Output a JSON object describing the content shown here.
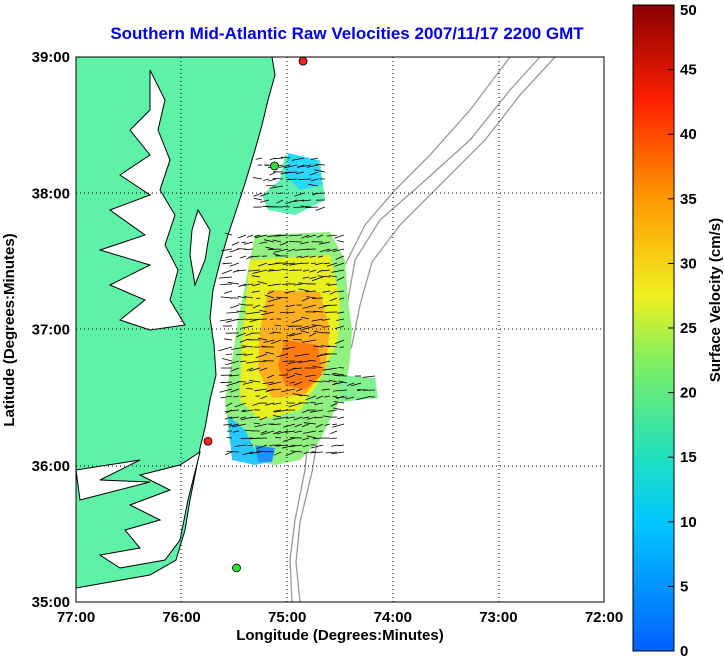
{
  "title": "Southern Mid-Atlantic Raw Velocities 2007/11/17 2200 GMT",
  "map": {
    "xlabel": "Longitude (Degrees:Minutes)",
    "ylabel": "Latitude (Degrees:Minutes)",
    "x_ticks": [
      "77:00",
      "76:00",
      "75:00",
      "74:00",
      "73:00",
      "72:00"
    ],
    "y_ticks": [
      "39:00",
      "38:00",
      "37:00",
      "36:00",
      "35:00"
    ],
    "lon_range": [
      -77,
      -72
    ],
    "lat_range": [
      35,
      39
    ],
    "land_color": "#5ef2a8",
    "grid": "dotted"
  },
  "colorbar": {
    "label": "Surface Velocity (cm/s)",
    "range": [
      0,
      50
    ],
    "ticks": [
      "0",
      "5",
      "10",
      "15",
      "20",
      "25",
      "30",
      "35",
      "40",
      "45",
      "50"
    ]
  },
  "radar_sites": [
    {
      "color": "#ff2020",
      "lon": -74.85,
      "lat": 38.97
    },
    {
      "color": "#30e030",
      "lon": -75.12,
      "lat": 38.2
    },
    {
      "color": "#ff2020",
      "lon": -75.75,
      "lat": 36.18
    },
    {
      "color": "#30e030",
      "lon": -75.48,
      "lat": 35.25
    }
  ]
}
